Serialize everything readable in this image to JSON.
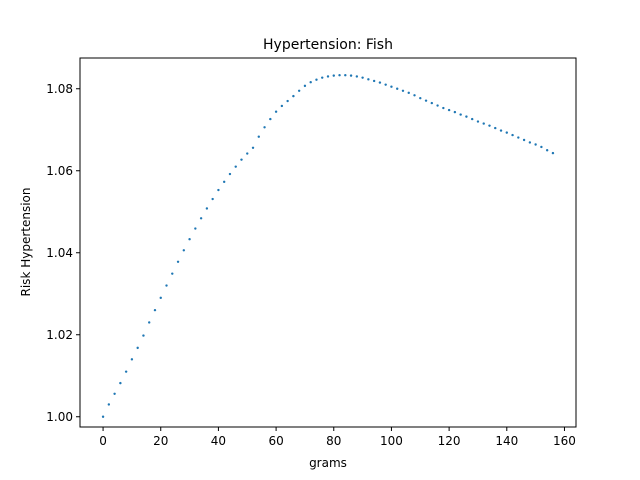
{
  "chart_data": {
    "type": "scatter",
    "title": "Hypertension: Fish",
    "xlabel": "grams",
    "ylabel": "Risk Hypertension",
    "xlim": [
      -8,
      164
    ],
    "ylim": [
      0.9975,
      1.0875
    ],
    "xticks": [
      0,
      20,
      40,
      60,
      80,
      100,
      120,
      140,
      160
    ],
    "yticks": [
      1.0,
      1.02,
      1.04,
      1.06,
      1.08
    ],
    "xtick_labels": [
      "0",
      "20",
      "40",
      "60",
      "80",
      "100",
      "120",
      "140",
      "160"
    ],
    "ytick_labels": [
      "1.00",
      "1.02",
      "1.04",
      "1.06",
      "1.08"
    ],
    "grid": false,
    "marker_color": "#1f77b4",
    "series": [
      {
        "x": [
          0,
          2,
          4,
          6,
          8,
          10,
          12,
          14,
          16,
          18,
          20,
          22,
          24,
          26,
          28,
          30,
          32,
          34,
          36,
          38,
          40,
          42,
          44,
          46,
          48,
          50,
          52,
          54,
          56,
          58,
          60,
          62,
          64,
          66,
          68,
          70,
          72,
          74,
          76,
          78,
          80,
          82,
          84,
          86,
          88,
          90,
          92,
          94,
          96,
          98,
          100,
          102,
          104,
          106,
          108,
          110,
          112,
          114,
          116,
          118,
          120,
          122,
          124,
          126,
          128,
          130,
          132,
          134,
          136,
          138,
          140,
          142,
          144,
          146,
          148,
          150,
          152,
          154,
          156
        ],
        "y": [
          1.0,
          1.003,
          1.0056,
          1.0082,
          1.011,
          1.014,
          1.0168,
          1.0198,
          1.023,
          1.026,
          1.029,
          1.032,
          1.0349,
          1.0378,
          1.0406,
          1.0433,
          1.0459,
          1.0484,
          1.0508,
          1.0531,
          1.0553,
          1.0573,
          1.0592,
          1.061,
          1.0627,
          1.0642,
          1.0656,
          1.0683,
          1.0706,
          1.0726,
          1.0744,
          1.0758,
          1.077,
          1.0782,
          1.0795,
          1.0807,
          1.0816,
          1.0822,
          1.0827,
          1.083,
          1.0832,
          1.0833,
          1.0833,
          1.0832,
          1.083,
          1.0827,
          1.0823,
          1.0819,
          1.0815,
          1.081,
          1.0805,
          1.08,
          1.0795,
          1.079,
          1.0784,
          1.0777,
          1.0771,
          1.0765,
          1.0759,
          1.0753,
          1.0748,
          1.0743,
          1.0737,
          1.0732,
          1.0726,
          1.072,
          1.0715,
          1.071,
          1.0704,
          1.0698,
          1.0693,
          1.0687,
          1.0681,
          1.0675,
          1.0669,
          1.0664,
          1.0658,
          1.065,
          1.0643
        ]
      }
    ]
  }
}
